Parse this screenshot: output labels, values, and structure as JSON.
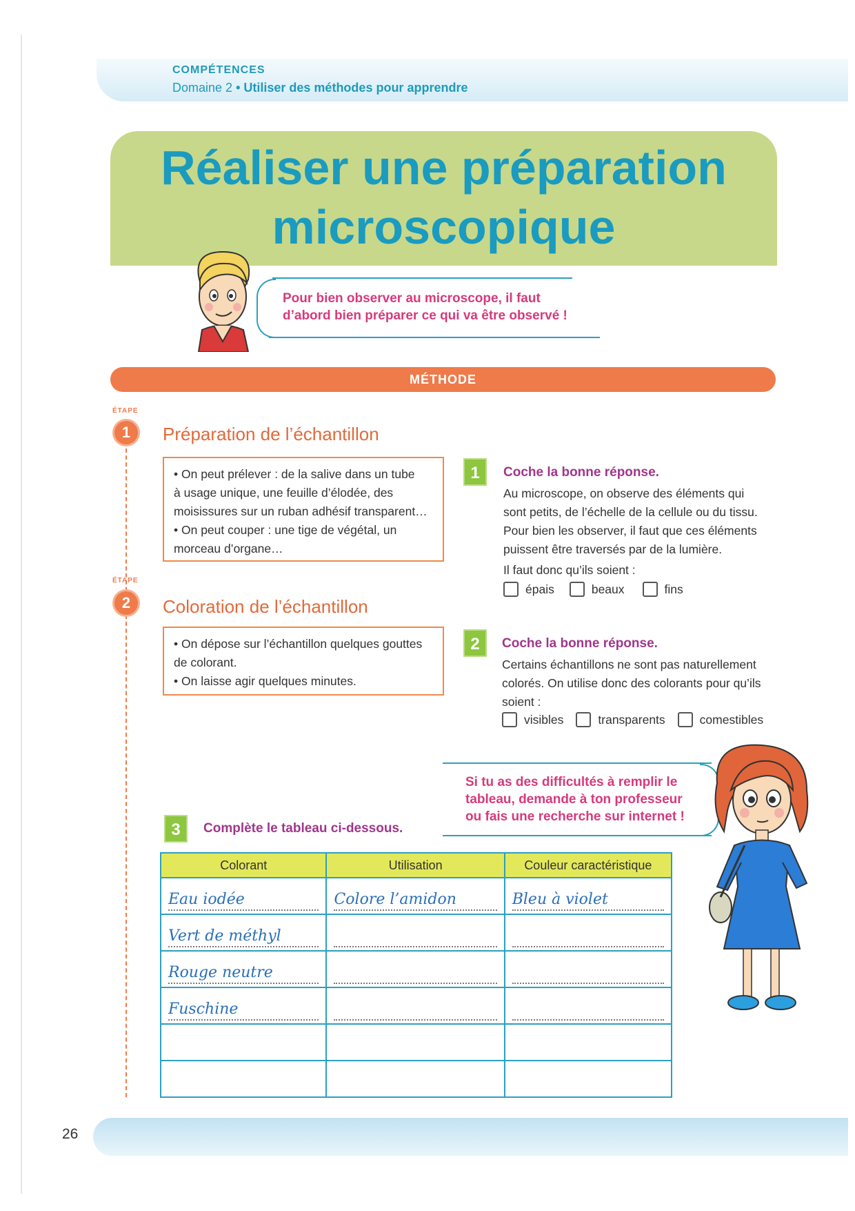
{
  "header": {
    "label": "COMPÉTENCES",
    "domain": "Domaine 2",
    "bullet": "•",
    "method": "Utiliser des méthodes pour apprendre"
  },
  "title": {
    "line1": "Réaliser une préparation",
    "line2": "microscopique"
  },
  "boy_bubble": {
    "line1": "Pour bien observer au microscope, il faut",
    "line2": "d’abord bien préparer ce qui va être observé !"
  },
  "methode": "MÉTHODE",
  "steps": [
    {
      "etape": "ÉTAPE",
      "number": "1",
      "title": "Préparation de l’échantillon",
      "lines": [
        "• On peut prélever : de la salive dans un tube",
        "à usage unique, une feuille d’élodée, des",
        "moisissures sur un ruban adhésif transparent…",
        "• On peut couper : une tige de végétal, un",
        "morceau d’organe…"
      ]
    },
    {
      "etape": "ÉTAPE",
      "number": "2",
      "title": "Coloration de l’échantillon",
      "lines": [
        "• On dépose sur l’échantillon quelques gouttes",
        "de colorant.",
        "• On laisse agir quelques minutes."
      ]
    }
  ],
  "questions": [
    {
      "number": "1",
      "title": "Coche la bonne réponse.",
      "lines": [
        "Au microscope, on observe des éléments qui",
        "sont petits, de l’échelle de la cellule ou du tissu.",
        "Pour bien les observer, il faut que ces éléments",
        "puissent être traversés par de la lumière."
      ],
      "prompt": "Il faut donc qu’ils soient :",
      "options": [
        "épais",
        "beaux",
        "fins"
      ]
    },
    {
      "number": "2",
      "title": "Coche la bonne réponse.",
      "lines": [
        "Certains échantillons ne sont pas naturellement",
        "colorés. On utilise donc des colorants pour qu’ils",
        "soient :"
      ],
      "options": [
        "visibles",
        "transparents",
        "comestibles"
      ]
    },
    {
      "number": "3",
      "title": "Complète le tableau ci-dessous."
    }
  ],
  "girl_bubble": {
    "line1": "Si tu as des difficultés à remplir le",
    "line2": "tableau, demande à ton professeur",
    "line3": "ou fais une recherche sur internet !"
  },
  "table": {
    "headers": [
      "Colorant",
      "Utilisation",
      "Couleur caractéristique"
    ],
    "rows": [
      [
        "Eau iodée",
        "Colore l’amidon",
        "Bleu à violet"
      ],
      [
        "Vert de méthyl",
        "",
        ""
      ],
      [
        "Rouge neutre",
        "",
        ""
      ],
      [
        "Fuschine",
        "",
        ""
      ],
      [
        "",
        "",
        ""
      ],
      [
        "",
        "",
        ""
      ]
    ]
  },
  "page_number": "26",
  "colors": {
    "accent_blue": "#1a9bbf",
    "title_bg": "#c7d88a",
    "orange": "#ef7a4a",
    "magenta": "#d63a7c",
    "purple": "#a0368a",
    "green": "#8dc63f",
    "table_header": "#e3e85a"
  }
}
